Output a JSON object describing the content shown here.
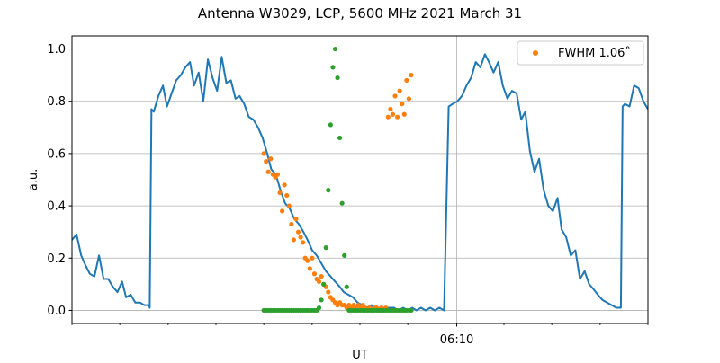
{
  "chart_data": {
    "type": "line",
    "title": "Antenna W3029, LCP, 5600 MHz 2021 March 31",
    "xlabel": "UT",
    "ylabel": "a.u.",
    "xlim": [
      0,
      1
    ],
    "ylim": [
      -0.05,
      1.05
    ],
    "x_axis": {
      "major_ticks": [
        {
          "x": 0.668,
          "label": "06:10"
        }
      ],
      "minor_ticks": [
        0.0,
        0.083,
        0.167,
        0.25,
        0.333,
        0.417,
        0.5,
        0.583,
        0.75,
        0.833,
        0.917,
        1.0
      ]
    },
    "y_ticks": [
      0.0,
      0.2,
      0.4,
      0.6,
      0.8,
      1.0
    ],
    "y_tick_labels": [
      "0.0",
      "0.2",
      "0.4",
      "0.6",
      "0.8",
      "1.0"
    ],
    "grid": true,
    "legend": {
      "position": "top-right",
      "entries": [
        {
          "label": "FWHM 1.06$^\\circ$",
          "display": "FWHM 1.06˚",
          "color": "#ff7f0e",
          "marker": "dot"
        }
      ]
    },
    "series": [
      {
        "kind": "line",
        "color": "#1f77b4",
        "x": [
          0.0,
          0.008,
          0.016,
          0.024,
          0.031,
          0.039,
          0.047,
          0.055,
          0.063,
          0.071,
          0.079,
          0.087,
          0.094,
          0.102,
          0.11,
          0.118,
          0.126,
          0.134,
          0.135,
          0.138,
          0.142,
          0.15,
          0.158,
          0.165,
          0.173,
          0.181,
          0.189,
          0.197,
          0.205,
          0.212,
          0.22,
          0.228,
          0.236,
          0.244,
          0.252,
          0.26,
          0.268,
          0.276,
          0.284,
          0.291,
          0.299,
          0.307,
          0.315,
          0.323,
          0.331,
          0.339,
          0.346,
          0.354,
          0.362,
          0.37,
          0.378,
          0.386,
          0.394,
          0.402,
          0.409,
          0.417,
          0.425,
          0.433,
          0.441,
          0.449,
          0.457,
          0.465,
          0.472,
          0.48,
          0.488,
          0.496,
          0.504,
          0.512,
          0.52,
          0.528,
          0.535,
          0.543,
          0.551,
          0.559,
          0.567,
          0.575,
          0.583,
          0.591,
          0.598,
          0.606,
          0.614,
          0.622,
          0.63,
          0.638,
          0.646,
          0.654,
          0.661,
          0.669,
          0.677,
          0.685,
          0.693,
          0.701,
          0.709,
          0.717,
          0.724,
          0.732,
          0.74,
          0.748,
          0.756,
          0.764,
          0.772,
          0.78,
          0.787,
          0.795,
          0.803,
          0.811,
          0.819,
          0.827,
          0.835,
          0.843,
          0.85,
          0.858,
          0.866,
          0.874,
          0.882,
          0.89,
          0.898,
          0.906,
          0.913,
          0.921,
          0.929,
          0.937,
          0.945,
          0.953,
          0.956,
          0.96,
          0.968,
          0.976,
          0.984,
          0.992,
          1.0
        ],
        "y": [
          0.27,
          0.29,
          0.21,
          0.17,
          0.14,
          0.13,
          0.21,
          0.12,
          0.12,
          0.09,
          0.07,
          0.11,
          0.05,
          0.06,
          0.03,
          0.03,
          0.02,
          0.02,
          0.01,
          0.77,
          0.76,
          0.82,
          0.86,
          0.78,
          0.83,
          0.88,
          0.9,
          0.93,
          0.95,
          0.86,
          0.91,
          0.8,
          0.96,
          0.89,
          0.84,
          0.97,
          0.87,
          0.88,
          0.81,
          0.82,
          0.79,
          0.74,
          0.73,
          0.7,
          0.66,
          0.6,
          0.54,
          0.52,
          0.46,
          0.41,
          0.39,
          0.35,
          0.33,
          0.3,
          0.27,
          0.23,
          0.21,
          0.18,
          0.15,
          0.13,
          0.11,
          0.09,
          0.07,
          0.06,
          0.05,
          0.03,
          0.02,
          0.01,
          0.02,
          0.0,
          0.01,
          0.01,
          0.01,
          0.01,
          0.0,
          0.01,
          0.0,
          0.01,
          0.0,
          0.01,
          0.0,
          0.01,
          0.0,
          0.01,
          0.0,
          0.78,
          0.79,
          0.8,
          0.82,
          0.86,
          0.89,
          0.95,
          0.93,
          0.98,
          0.95,
          0.91,
          0.95,
          0.86,
          0.81,
          0.84,
          0.83,
          0.73,
          0.76,
          0.61,
          0.53,
          0.58,
          0.46,
          0.4,
          0.38,
          0.43,
          0.31,
          0.28,
          0.21,
          0.23,
          0.12,
          0.15,
          0.1,
          0.08,
          0.06,
          0.04,
          0.03,
          0.02,
          0.01,
          0.01,
          0.78,
          0.79,
          0.78,
          0.86,
          0.85,
          0.8,
          0.77
        ],
        "linewidth": 2
      },
      {
        "kind": "scatter",
        "name": "FWHM 1.06˚",
        "color": "#ff7f0e",
        "x": [
          0.333,
          0.337,
          0.341,
          0.345,
          0.349,
          0.353,
          0.357,
          0.361,
          0.365,
          0.369,
          0.373,
          0.377,
          0.381,
          0.385,
          0.389,
          0.393,
          0.397,
          0.401,
          0.405,
          0.409,
          0.413,
          0.417,
          0.421,
          0.425,
          0.429,
          0.433,
          0.437,
          0.441,
          0.445,
          0.449,
          0.453,
          0.457,
          0.461,
          0.465,
          0.469,
          0.473,
          0.477,
          0.481,
          0.485,
          0.489,
          0.493,
          0.497,
          0.501,
          0.505,
          0.509,
          0.513,
          0.517,
          0.521,
          0.525,
          0.529,
          0.533,
          0.537,
          0.541,
          0.545,
          0.549,
          0.553,
          0.557,
          0.561,
          0.565,
          0.569,
          0.573,
          0.577,
          0.581,
          0.585,
          0.589
        ],
        "y": [
          0.6,
          0.57,
          0.53,
          0.58,
          0.52,
          0.51,
          0.52,
          0.45,
          0.38,
          0.48,
          0.44,
          0.4,
          0.33,
          0.27,
          0.35,
          0.3,
          0.28,
          0.26,
          0.2,
          0.19,
          0.16,
          0.2,
          0.14,
          0.12,
          0.11,
          0.13,
          0.1,
          0.09,
          0.07,
          0.05,
          0.04,
          0.03,
          0.02,
          0.03,
          0.02,
          0.02,
          0.01,
          0.02,
          0.01,
          0.02,
          0.01,
          0.02,
          0.01,
          0.02,
          0.01,
          0.0,
          0.01,
          0.0,
          0.01,
          0.01,
          0.0,
          0.01,
          0.0,
          0.01,
          0.74,
          0.77,
          0.75,
          0.82,
          0.74,
          0.84,
          0.79,
          0.75,
          0.88,
          0.81,
          0.9
        ]
      },
      {
        "kind": "scatter",
        "color": "#2ca02c",
        "x": [
          0.333,
          0.337,
          0.341,
          0.345,
          0.349,
          0.353,
          0.357,
          0.361,
          0.365,
          0.369,
          0.373,
          0.377,
          0.381,
          0.385,
          0.389,
          0.393,
          0.397,
          0.401,
          0.405,
          0.409,
          0.413,
          0.417,
          0.421,
          0.425,
          0.429,
          0.433,
          0.437,
          0.441,
          0.445,
          0.449,
          0.453,
          0.457,
          0.461,
          0.465,
          0.469,
          0.473,
          0.477,
          0.481,
          0.485,
          0.489,
          0.493,
          0.497,
          0.501,
          0.505,
          0.509,
          0.513,
          0.517,
          0.521,
          0.525,
          0.529,
          0.533,
          0.537,
          0.541,
          0.545,
          0.549,
          0.553,
          0.557,
          0.561,
          0.565,
          0.569,
          0.573,
          0.577,
          0.581,
          0.585,
          0.589
        ],
        "y": [
          0.0,
          0.0,
          0.0,
          0.0,
          0.0,
          0.0,
          0.0,
          0.0,
          0.0,
          0.0,
          0.0,
          0.0,
          0.0,
          0.0,
          0.0,
          0.0,
          0.0,
          0.0,
          0.0,
          0.0,
          0.0,
          0.0,
          0.0,
          0.0,
          0.01,
          0.04,
          0.1,
          0.24,
          0.46,
          0.71,
          0.93,
          1.0,
          0.89,
          0.66,
          0.41,
          0.21,
          0.09,
          0.0,
          0.0,
          0.0,
          0.0,
          0.0,
          0.0,
          0.0,
          0.0,
          0.0,
          0.0,
          0.0,
          0.0,
          0.0,
          0.0,
          0.0,
          0.0,
          0.0,
          0.0,
          0.0,
          0.0,
          0.0,
          0.0,
          0.0,
          0.0,
          0.0,
          0.0,
          0.0,
          0.0
        ]
      }
    ]
  }
}
